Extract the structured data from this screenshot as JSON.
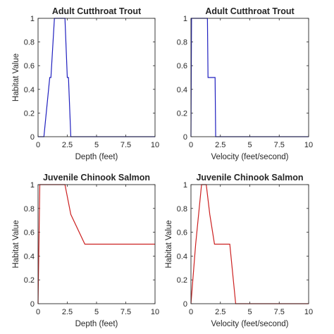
{
  "chart_data": [
    {
      "type": "line",
      "title": "Adult Cutthroat Trout",
      "xlabel": "Depth (feet)",
      "ylabel": "Habitat Value",
      "xlim": [
        0,
        10
      ],
      "ylim": [
        0,
        1
      ],
      "xticks": [
        0,
        2.5,
        5,
        7.5,
        10
      ],
      "xtick_labels": [
        "0",
        "2.5",
        "5",
        "7.5",
        "10"
      ],
      "yticks": [
        0,
        0.2,
        0.4,
        0.6,
        0.8,
        1
      ],
      "ytick_labels": [
        "0",
        "0.2",
        "0.4",
        "0.6",
        "0.8",
        "1"
      ],
      "grid": false,
      "color": "#1f1fbf",
      "series": [
        {
          "x": [
            0,
            0.5,
            1.0,
            1.1,
            1.4,
            2.3,
            2.5,
            2.6,
            2.8,
            10
          ],
          "y": [
            0,
            0,
            0.5,
            0.5,
            1,
            1,
            0.5,
            0.5,
            0,
            0
          ]
        }
      ]
    },
    {
      "type": "line",
      "title": "Adult Cutthroat Trout",
      "xlabel": "Velocity (feet/second)",
      "ylabel": "",
      "xlim": [
        0,
        10
      ],
      "ylim": [
        0,
        1
      ],
      "xticks": [
        0,
        2.5,
        5,
        7.5,
        10
      ],
      "xtick_labels": [
        "0",
        "2.5",
        "5",
        "7.5",
        "10"
      ],
      "yticks": [
        0,
        0.2,
        0.4,
        0.6,
        0.8,
        1
      ],
      "ytick_labels": [
        "0",
        "0.2",
        "0.4",
        "0.6",
        "0.8",
        "1"
      ],
      "grid": false,
      "color": "#1f1fbf",
      "series": [
        {
          "x": [
            0,
            0.05,
            1.4,
            1.45,
            2.05,
            2.1,
            10
          ],
          "y": [
            0,
            1,
            1,
            0.5,
            0.5,
            0,
            0
          ]
        }
      ]
    },
    {
      "type": "line",
      "title": "Juvenile Chinook Salmon",
      "xlabel": "Depth (feet)",
      "ylabel": "Habitat Value",
      "xlim": [
        0,
        10
      ],
      "ylim": [
        0,
        1
      ],
      "xticks": [
        0,
        2.5,
        5,
        7.5,
        10
      ],
      "xtick_labels": [
        "0",
        "2.5",
        "5",
        "7.5",
        "10"
      ],
      "yticks": [
        0,
        0.2,
        0.4,
        0.6,
        0.8,
        1
      ],
      "ytick_labels": [
        "0",
        "0.2",
        "0.4",
        "0.6",
        "0.8",
        "1"
      ],
      "grid": false,
      "color": "#cc2020",
      "series": [
        {
          "x": [
            0,
            0.15,
            2.3,
            2.8,
            4.0,
            10
          ],
          "y": [
            0,
            1,
            1,
            0.75,
            0.5,
            0.5
          ]
        }
      ]
    },
    {
      "type": "line",
      "title": "Juvenile Chinook Salmon",
      "xlabel": "Velocity (feet/second)",
      "ylabel": "Habitat Value",
      "xlim": [
        0,
        10
      ],
      "ylim": [
        0,
        1
      ],
      "xticks": [
        0,
        2.5,
        5,
        7.5,
        10
      ],
      "xtick_labels": [
        "0",
        "2.5",
        "5",
        "7.5",
        "10"
      ],
      "yticks": [
        0,
        0.2,
        0.4,
        0.6,
        0.8,
        1
      ],
      "ytick_labels": [
        "0",
        "0.2",
        "0.4",
        "0.6",
        "0.8",
        "1"
      ],
      "grid": false,
      "color": "#cc2020",
      "series": [
        {
          "x": [
            0,
            0.4,
            0.9,
            1.3,
            1.6,
            2.0,
            3.3,
            3.8,
            10
          ],
          "y": [
            0,
            0.5,
            1,
            1,
            0.75,
            0.5,
            0.5,
            0,
            0
          ]
        }
      ]
    }
  ]
}
